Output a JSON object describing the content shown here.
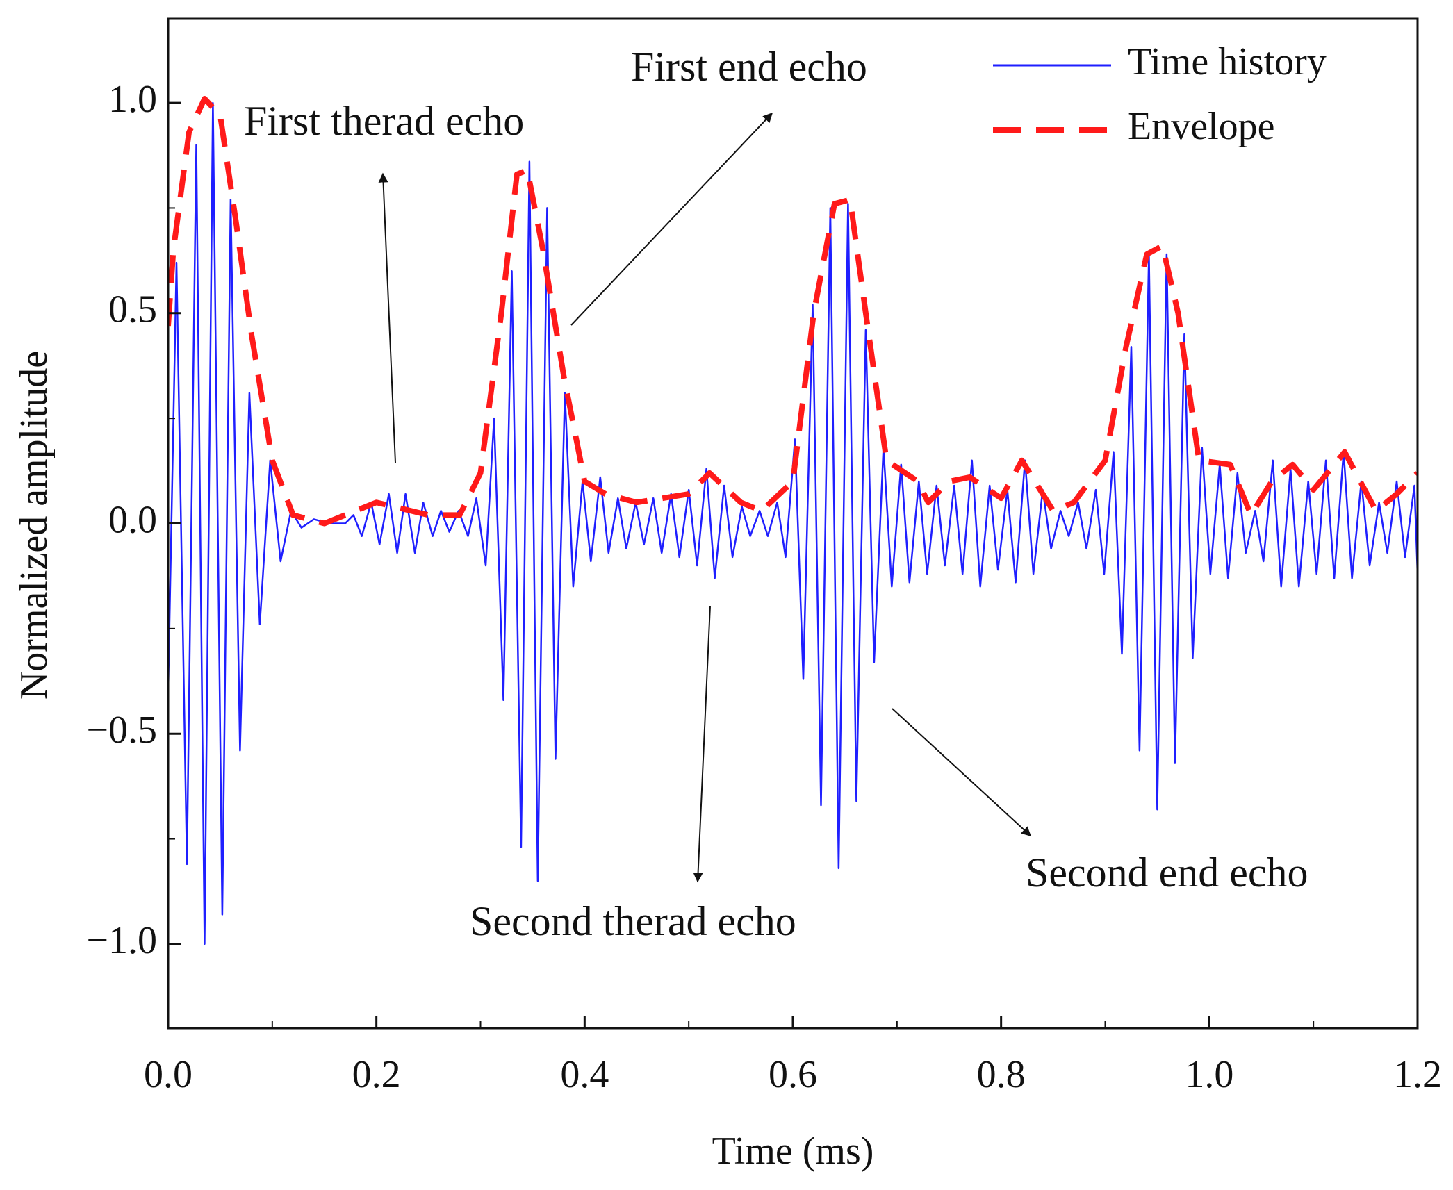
{
  "chart_data": {
    "type": "line",
    "xlabel": "Time (ms)",
    "ylabel": "Normalized amplitude",
    "xlim": [
      0,
      1.2
    ],
    "ylim": [
      -1.2,
      1.2
    ],
    "xticks": [
      {
        "value": 0,
        "label": "0.0"
      },
      {
        "value": 0.2,
        "label": "0.2"
      },
      {
        "value": 0.4,
        "label": "0.4"
      },
      {
        "value": 0.6,
        "label": "0.6"
      },
      {
        "value": 0.8,
        "label": "0.8"
      },
      {
        "value": 1.0,
        "label": "1.0"
      },
      {
        "value": 1.2,
        "label": "1.2"
      }
    ],
    "yticks": [
      {
        "value": -1,
        "label": "−1.0"
      },
      {
        "value": -0.5,
        "label": "−0.5"
      },
      {
        "value": 0,
        "label": "0.0"
      },
      {
        "value": 0.5,
        "label": "0.5"
      },
      {
        "value": 1,
        "label": "1.0"
      }
    ],
    "xminor": [
      0.1,
      0.3,
      0.5,
      0.7,
      0.9,
      1.1
    ],
    "yminor": [
      -0.75,
      -0.25,
      0.25,
      0.75
    ],
    "grid": false,
    "legend": "upper right",
    "annotations": [
      "First therad echo",
      "First end echo",
      "Second therad echo",
      "Second end echo"
    ],
    "series": [
      {
        "name": "Time history",
        "color": "#1f1fff",
        "style": "solid",
        "x": [
          0.0,
          0.008,
          0.018,
          0.027,
          0.035,
          0.043,
          0.052,
          0.06,
          0.069,
          0.078,
          0.088,
          0.098,
          0.108,
          0.118,
          0.128,
          0.14,
          0.155,
          0.17,
          0.178,
          0.186,
          0.195,
          0.203,
          0.212,
          0.22,
          0.228,
          0.237,
          0.245,
          0.254,
          0.262,
          0.27,
          0.279,
          0.288,
          0.296,
          0.305,
          0.313,
          0.322,
          0.33,
          0.339,
          0.347,
          0.355,
          0.364,
          0.372,
          0.381,
          0.389,
          0.398,
          0.406,
          0.415,
          0.423,
          0.432,
          0.44,
          0.449,
          0.457,
          0.466,
          0.474,
          0.483,
          0.491,
          0.5,
          0.508,
          0.517,
          0.525,
          0.534,
          0.542,
          0.551,
          0.559,
          0.568,
          0.576,
          0.585,
          0.593,
          0.602,
          0.61,
          0.619,
          0.627,
          0.636,
          0.644,
          0.653,
          0.661,
          0.67,
          0.678,
          0.687,
          0.695,
          0.704,
          0.712,
          0.721,
          0.729,
          0.738,
          0.746,
          0.755,
          0.763,
          0.772,
          0.78,
          0.789,
          0.797,
          0.806,
          0.814,
          0.823,
          0.831,
          0.84,
          0.848,
          0.857,
          0.865,
          0.874,
          0.882,
          0.891,
          0.899,
          0.908,
          0.916,
          0.925,
          0.933,
          0.942,
          0.95,
          0.959,
          0.967,
          0.976,
          0.984,
          0.993,
          1.001,
          1.01,
          1.018,
          1.027,
          1.035,
          1.044,
          1.052,
          1.061,
          1.069,
          1.078,
          1.086,
          1.095,
          1.103,
          1.112,
          1.12,
          1.129,
          1.137,
          1.146,
          1.154,
          1.163,
          1.171,
          1.18,
          1.188,
          1.197,
          1.2
        ],
        "values": [
          -0.4,
          0.62,
          -0.81,
          0.9,
          -1.0,
          1.0,
          -0.93,
          0.77,
          -0.54,
          0.31,
          -0.24,
          0.15,
          -0.09,
          0.03,
          -0.01,
          0.01,
          0.0,
          0.0,
          0.02,
          -0.03,
          0.05,
          -0.05,
          0.07,
          -0.07,
          0.07,
          -0.07,
          0.05,
          -0.03,
          0.03,
          -0.02,
          0.03,
          -0.03,
          0.06,
          -0.1,
          0.25,
          -0.42,
          0.6,
          -0.77,
          0.86,
          -0.85,
          0.75,
          -0.56,
          0.31,
          -0.15,
          0.1,
          -0.09,
          0.11,
          -0.07,
          0.06,
          -0.06,
          0.05,
          -0.05,
          0.06,
          -0.07,
          0.07,
          -0.08,
          0.08,
          -0.1,
          0.13,
          -0.13,
          0.09,
          -0.08,
          0.04,
          -0.03,
          0.03,
          -0.03,
          0.05,
          -0.08,
          0.2,
          -0.37,
          0.52,
          -0.67,
          0.75,
          -0.82,
          0.76,
          -0.66,
          0.46,
          -0.33,
          0.18,
          -0.15,
          0.14,
          -0.14,
          0.1,
          -0.12,
          0.09,
          -0.1,
          0.09,
          -0.12,
          0.15,
          -0.15,
          0.09,
          -0.11,
          0.08,
          -0.14,
          0.15,
          -0.12,
          0.08,
          -0.06,
          0.03,
          -0.03,
          0.05,
          -0.06,
          0.08,
          -0.12,
          0.17,
          -0.31,
          0.42,
          -0.54,
          0.64,
          -0.68,
          0.64,
          -0.57,
          0.45,
          -0.32,
          0.18,
          -0.12,
          0.14,
          -0.13,
          0.12,
          -0.07,
          0.03,
          -0.09,
          0.15,
          -0.15,
          0.13,
          -0.15,
          0.1,
          -0.12,
          0.15,
          -0.13,
          0.17,
          -0.13,
          0.1,
          -0.1,
          0.05,
          -0.07,
          0.1,
          -0.08,
          0.09,
          -0.12
        ]
      },
      {
        "name": "Envelope",
        "color": "#ff1a1a",
        "style": "dashed",
        "x": [
          0.0,
          0.005,
          0.02,
          0.035,
          0.05,
          0.065,
          0.08,
          0.1,
          0.12,
          0.15,
          0.2,
          0.25,
          0.28,
          0.3,
          0.32,
          0.335,
          0.345,
          0.36,
          0.38,
          0.4,
          0.42,
          0.45,
          0.5,
          0.52,
          0.55,
          0.57,
          0.6,
          0.62,
          0.64,
          0.655,
          0.67,
          0.69,
          0.72,
          0.73,
          0.75,
          0.77,
          0.8,
          0.82,
          0.85,
          0.87,
          0.9,
          0.92,
          0.94,
          0.955,
          0.97,
          0.99,
          1.02,
          1.04,
          1.06,
          1.08,
          1.1,
          1.13,
          1.16,
          1.18,
          1.2
        ],
        "values": [
          0.47,
          0.65,
          0.93,
          1.01,
          0.97,
          0.72,
          0.45,
          0.15,
          0.02,
          0.0,
          0.05,
          0.02,
          0.02,
          0.12,
          0.5,
          0.83,
          0.84,
          0.65,
          0.35,
          0.1,
          0.07,
          0.05,
          0.07,
          0.12,
          0.05,
          0.03,
          0.1,
          0.5,
          0.76,
          0.77,
          0.5,
          0.15,
          0.1,
          0.05,
          0.1,
          0.11,
          0.06,
          0.15,
          0.03,
          0.05,
          0.15,
          0.42,
          0.64,
          0.66,
          0.5,
          0.15,
          0.14,
          0.02,
          0.1,
          0.14,
          0.08,
          0.17,
          0.03,
          0.07,
          0.12
        ]
      }
    ]
  }
}
